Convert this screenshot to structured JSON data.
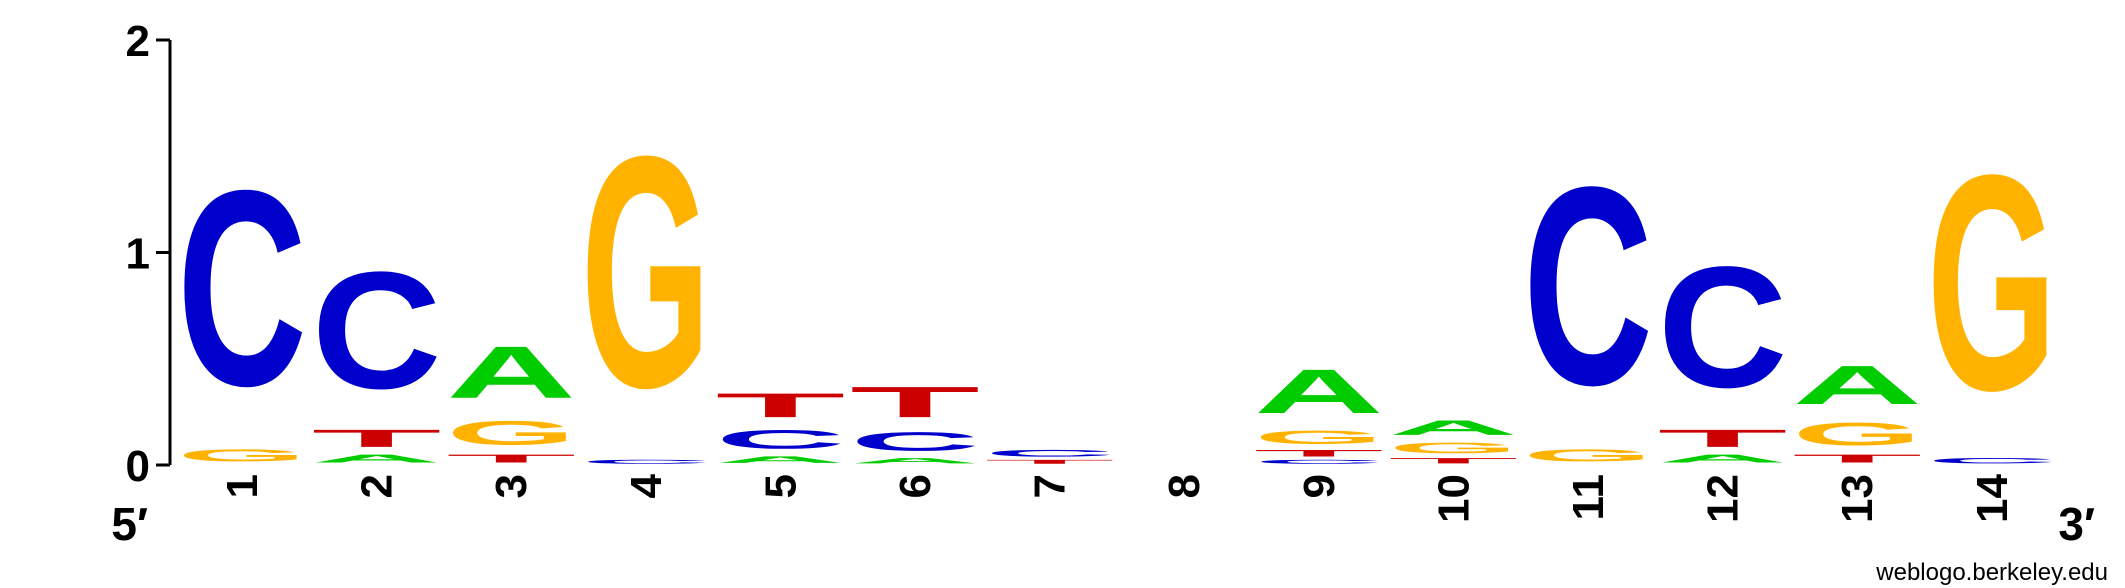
{
  "chart_data": {
    "type": "sequence-logo",
    "alphabet": [
      "A",
      "C",
      "G",
      "T"
    ],
    "colors": {
      "A": "#00cc00",
      "C": "#0000cc",
      "G": "#ffb300",
      "T": "#cc0000"
    },
    "y_ticks": [
      "0",
      "1",
      "2"
    ],
    "ylim": [
      0,
      2
    ],
    "x_ticks": [
      "1",
      "2",
      "3",
      "4",
      "5",
      "6",
      "7",
      "8",
      "9",
      "10",
      "11",
      "12",
      "13",
      "14"
    ],
    "end_left": "5′",
    "end_right": "3′",
    "positions": [
      {
        "pos": "1",
        "stack": [
          [
            "G",
            0.09
          ],
          [
            "C",
            1.47
          ]
        ]
      },
      {
        "pos": "2",
        "stack": [
          [
            "A",
            0.06
          ],
          [
            "T",
            0.13
          ],
          [
            "C",
            0.88
          ]
        ]
      },
      {
        "pos": "3",
        "stack": [
          [
            "T",
            0.06
          ],
          [
            "G",
            0.18
          ],
          [
            "A",
            0.39
          ]
        ]
      },
      {
        "pos": "4",
        "stack": [
          [
            "C",
            0.03
          ],
          [
            "G",
            1.74
          ]
        ]
      },
      {
        "pos": "5",
        "stack": [
          [
            "A",
            0.05
          ],
          [
            "C",
            0.14
          ],
          [
            "T",
            0.18
          ]
        ]
      },
      {
        "pos": "6",
        "stack": [
          [
            "A",
            0.04
          ],
          [
            "C",
            0.14
          ],
          [
            "T",
            0.23
          ]
        ]
      },
      {
        "pos": "7",
        "stack": [
          [
            "T",
            0.03
          ],
          [
            "C",
            0.05
          ]
        ]
      },
      {
        "pos": "8",
        "stack": []
      },
      {
        "pos": "9",
        "stack": [
          [
            "C",
            0.03
          ],
          [
            "T",
            0.05
          ],
          [
            "G",
            0.1
          ],
          [
            "A",
            0.33
          ]
        ]
      },
      {
        "pos": "10",
        "stack": [
          [
            "T",
            0.04
          ],
          [
            "G",
            0.08
          ],
          [
            "A",
            0.11
          ]
        ]
      },
      {
        "pos": "11",
        "stack": [
          [
            "G",
            0.09
          ],
          [
            "C",
            1.49
          ]
        ]
      },
      {
        "pos": "12",
        "stack": [
          [
            "A",
            0.06
          ],
          [
            "T",
            0.13
          ],
          [
            "C",
            0.91
          ]
        ]
      },
      {
        "pos": "13",
        "stack": [
          [
            "T",
            0.06
          ],
          [
            "G",
            0.17
          ],
          [
            "A",
            0.29
          ]
        ]
      },
      {
        "pos": "14",
        "stack": [
          [
            "C",
            0.04
          ],
          [
            "G",
            1.62
          ]
        ]
      }
    ]
  },
  "credit": "weblogo.berkeley.edu"
}
